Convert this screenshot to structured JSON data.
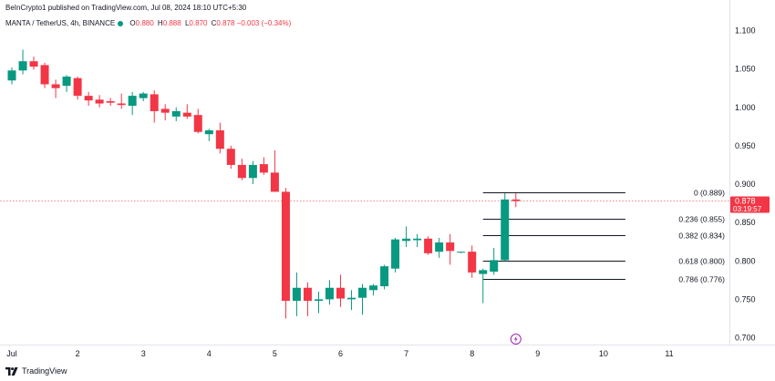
{
  "header": {
    "published_line": "BeInCrypto1 published on TradingView.com, Jul 08, 2024 18:10 UTC+5:30"
  },
  "symbol": {
    "name": "MANTA / TetherUS, 4h, BINANCE",
    "status_color": "#089981",
    "ohlc": [
      {
        "key": "O",
        "value": "0.880"
      },
      {
        "key": "H",
        "value": "0.888"
      },
      {
        "key": "L",
        "value": "0.870"
      },
      {
        "key": "C",
        "value": "0.878"
      }
    ],
    "change": "−0.003 (−0.34%)"
  },
  "price_label": {
    "price": "0.878",
    "countdown": "03:19:57",
    "color": "#f23645"
  },
  "footer": {
    "brand": "TradingView"
  },
  "colors": {
    "up": "#089981",
    "down": "#f23645",
    "fib_line": "#131722"
  },
  "chart_data": {
    "type": "candlestick",
    "title": "",
    "ylim": [
      0.685,
      1.12
    ],
    "y_ticks": [
      0.7,
      0.75,
      0.8,
      0.85,
      0.9,
      0.95,
      1.0,
      1.05,
      1.1
    ],
    "y_tick_labels": [
      "0.700",
      "0.750",
      "0.800",
      "0.850",
      "0.900",
      "0.950",
      "1.000",
      "1.050",
      "1.100"
    ],
    "x_ticks": [
      {
        "day": 1,
        "label": "Jul"
      },
      {
        "day": 2,
        "label": "2"
      },
      {
        "day": 3,
        "label": "3"
      },
      {
        "day": 4,
        "label": "4"
      },
      {
        "day": 5,
        "label": "5"
      },
      {
        "day": 6,
        "label": "6"
      },
      {
        "day": 7,
        "label": "7"
      },
      {
        "day": 8,
        "label": "8"
      },
      {
        "day": 9,
        "label": "9"
      },
      {
        "day": 10,
        "label": "10"
      },
      {
        "day": 11,
        "label": "11"
      }
    ],
    "candle_interval": "4h",
    "candles": [
      {
        "t": 1.0,
        "o": 1.035,
        "h": 1.052,
        "l": 1.03,
        "c": 1.048
      },
      {
        "t": 1.167,
        "o": 1.048,
        "h": 1.075,
        "l": 1.043,
        "c": 1.06
      },
      {
        "t": 1.333,
        "o": 1.06,
        "h": 1.066,
        "l": 1.049,
        "c": 1.053
      },
      {
        "t": 1.5,
        "o": 1.055,
        "h": 1.058,
        "l": 1.025,
        "c": 1.03
      },
      {
        "t": 1.667,
        "o": 1.03,
        "h": 1.036,
        "l": 1.012,
        "c": 1.025
      },
      {
        "t": 1.833,
        "o": 1.028,
        "h": 1.042,
        "l": 1.02,
        "c": 1.04
      },
      {
        "t": 2.0,
        "o": 1.038,
        "h": 1.04,
        "l": 1.01,
        "c": 1.015
      },
      {
        "t": 2.167,
        "o": 1.015,
        "h": 1.02,
        "l": 1.002,
        "c": 1.009
      },
      {
        "t": 2.333,
        "o": 1.01,
        "h": 1.016,
        "l": 1.0,
        "c": 1.005
      },
      {
        "t": 2.5,
        "o": 1.008,
        "h": 1.012,
        "l": 1.002,
        "c": 1.006
      },
      {
        "t": 2.667,
        "o": 1.005,
        "h": 1.018,
        "l": 0.998,
        "c": 1.003
      },
      {
        "t": 2.833,
        "o": 1.002,
        "h": 1.02,
        "l": 0.99,
        "c": 1.015
      },
      {
        "t": 3.0,
        "o": 1.012,
        "h": 1.02,
        "l": 1.008,
        "c": 1.018
      },
      {
        "t": 3.167,
        "o": 1.017,
        "h": 1.022,
        "l": 0.98,
        "c": 0.995
      },
      {
        "t": 3.333,
        "o": 0.998,
        "h": 1.004,
        "l": 0.983,
        "c": 0.993
      },
      {
        "t": 3.5,
        "o": 0.988,
        "h": 1.0,
        "l": 0.982,
        "c": 0.995
      },
      {
        "t": 3.667,
        "o": 0.993,
        "h": 1.004,
        "l": 0.985,
        "c": 0.988
      },
      {
        "t": 3.833,
        "o": 0.99,
        "h": 0.998,
        "l": 0.966,
        "c": 0.968
      },
      {
        "t": 4.0,
        "o": 0.965,
        "h": 0.972,
        "l": 0.956,
        "c": 0.97
      },
      {
        "t": 4.167,
        "o": 0.97,
        "h": 0.98,
        "l": 0.94,
        "c": 0.946
      },
      {
        "t": 4.333,
        "o": 0.946,
        "h": 0.95,
        "l": 0.92,
        "c": 0.925
      },
      {
        "t": 4.5,
        "o": 0.925,
        "h": 0.933,
        "l": 0.905,
        "c": 0.908
      },
      {
        "t": 4.667,
        "o": 0.908,
        "h": 0.93,
        "l": 0.9,
        "c": 0.925
      },
      {
        "t": 4.833,
        "o": 0.926,
        "h": 0.935,
        "l": 0.912,
        "c": 0.915
      },
      {
        "t": 5.0,
        "o": 0.915,
        "h": 0.944,
        "l": 0.89,
        "c": 0.89
      },
      {
        "t": 5.167,
        "o": 0.89,
        "h": 0.895,
        "l": 0.725,
        "c": 0.748
      },
      {
        "t": 5.333,
        "o": 0.748,
        "h": 0.785,
        "l": 0.728,
        "c": 0.765
      },
      {
        "t": 5.5,
        "o": 0.765,
        "h": 0.772,
        "l": 0.728,
        "c": 0.748
      },
      {
        "t": 5.667,
        "o": 0.748,
        "h": 0.76,
        "l": 0.732,
        "c": 0.75
      },
      {
        "t": 5.833,
        "o": 0.75,
        "h": 0.775,
        "l": 0.743,
        "c": 0.765
      },
      {
        "t": 6.0,
        "o": 0.765,
        "h": 0.782,
        "l": 0.74,
        "c": 0.751
      },
      {
        "t": 6.167,
        "o": 0.75,
        "h": 0.762,
        "l": 0.736,
        "c": 0.752
      },
      {
        "t": 6.333,
        "o": 0.752,
        "h": 0.77,
        "l": 0.73,
        "c": 0.765
      },
      {
        "t": 6.5,
        "o": 0.762,
        "h": 0.77,
        "l": 0.755,
        "c": 0.768
      },
      {
        "t": 6.667,
        "o": 0.767,
        "h": 0.795,
        "l": 0.763,
        "c": 0.793
      },
      {
        "t": 6.833,
        "o": 0.79,
        "h": 0.83,
        "l": 0.785,
        "c": 0.828
      },
      {
        "t": 7.0,
        "o": 0.826,
        "h": 0.845,
        "l": 0.818,
        "c": 0.829
      },
      {
        "t": 7.167,
        "o": 0.827,
        "h": 0.835,
        "l": 0.818,
        "c": 0.829
      },
      {
        "t": 7.333,
        "o": 0.829,
        "h": 0.832,
        "l": 0.808,
        "c": 0.81
      },
      {
        "t": 7.5,
        "o": 0.812,
        "h": 0.83,
        "l": 0.804,
        "c": 0.824
      },
      {
        "t": 7.667,
        "o": 0.824,
        "h": 0.835,
        "l": 0.795,
        "c": 0.813
      },
      {
        "t": 7.833,
        "o": 0.812,
        "h": 0.812,
        "l": 0.81,
        "c": 0.812
      },
      {
        "t": 8.0,
        "o": 0.812,
        "h": 0.82,
        "l": 0.778,
        "c": 0.785
      },
      {
        "t": 8.167,
        "o": 0.783,
        "h": 0.79,
        "l": 0.745,
        "c": 0.788
      },
      {
        "t": 8.333,
        "o": 0.786,
        "h": 0.817,
        "l": 0.782,
        "c": 0.801
      },
      {
        "t": 8.5,
        "o": 0.801,
        "h": 0.888,
        "l": 0.8,
        "c": 0.88
      },
      {
        "t": 8.667,
        "o": 0.88,
        "h": 0.888,
        "l": 0.87,
        "c": 0.878
      }
    ],
    "last_price": 0.878,
    "fibonacci": {
      "levels": [
        {
          "ratio": "0",
          "price": 0.889,
          "label": "0 (0.889)"
        },
        {
          "ratio": "0.236",
          "price": 0.855,
          "label": "0.236 (0.855)"
        },
        {
          "ratio": "0.382",
          "price": 0.834,
          "label": "0.382 (0.834)"
        },
        {
          "ratio": "0.618",
          "price": 0.8,
          "label": "0.618 (0.800)"
        },
        {
          "ratio": "0.786",
          "price": 0.776,
          "label": "0.786 (0.776)"
        }
      ],
      "x_start_day": 8.167,
      "x_end_day": 10.333
    },
    "event_marker": {
      "day": 8.667,
      "icon": "lightning-icon"
    }
  }
}
